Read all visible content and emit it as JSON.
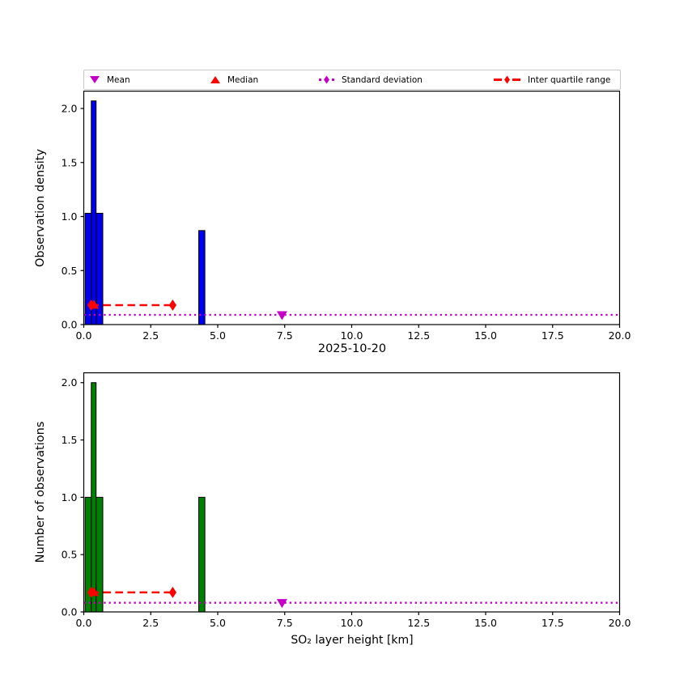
{
  "legend": {
    "items": [
      {
        "label": "Mean",
        "marker": "triangle-down",
        "color": "#c400c4"
      },
      {
        "label": "Median",
        "marker": "triangle-up",
        "color": "#ff0000"
      },
      {
        "label": "Standard deviation",
        "marker": "thin-diamond-dotted-line",
        "color": "#c400c4"
      },
      {
        "label": "Inter quartile range",
        "marker": "thin-diamond-dashed-line",
        "color": "#ff0000"
      }
    ]
  },
  "chart_data": [
    {
      "type": "bar",
      "title": "2025-10-20",
      "ylabel": "Observation density",
      "xlim": [
        0,
        20
      ],
      "ylim": [
        0,
        2.165
      ],
      "xticks": [
        0.0,
        2.5,
        5.0,
        7.5,
        10.0,
        12.5,
        15.0,
        17.5,
        20.0
      ],
      "yticks": [
        0.0,
        0.5,
        1.0,
        1.5,
        2.0
      ],
      "grid": false,
      "bar_color": "#0000ee",
      "bar_edge": "#000000",
      "bars": [
        {
          "x0": 0.05,
          "x1": 0.28,
          "height": 1.03
        },
        {
          "x0": 0.28,
          "x1": 0.46,
          "height": 2.07
        },
        {
          "x0": 0.46,
          "x1": 0.71,
          "height": 1.03
        },
        {
          "x0": 4.29,
          "x1": 4.52,
          "height": 0.87
        }
      ],
      "stats": {
        "mean": {
          "x": 7.4,
          "y": 0.09
        },
        "median": {
          "x": 0.38,
          "y": 0.18
        },
        "std_line": {
          "x0": 0.0,
          "x1": 20.0,
          "y": 0.09
        },
        "iqr": {
          "x0": 0.27,
          "x1": 3.32,
          "y": 0.18
        }
      },
      "colors": {
        "mean": "#c400c4",
        "median": "#ff0000",
        "std": "#c400c4",
        "iqr": "#ff0000"
      }
    },
    {
      "type": "bar",
      "xlabel": "SO₂ layer height [km]",
      "ylabel": "Number of observations",
      "xlim": [
        0,
        20
      ],
      "ylim": [
        0,
        2.09
      ],
      "xticks": [
        0.0,
        2.5,
        5.0,
        7.5,
        10.0,
        12.5,
        15.0,
        17.5,
        20.0
      ],
      "yticks": [
        0.0,
        0.5,
        1.0,
        1.5,
        2.0
      ],
      "grid": false,
      "bar_color": "#008000",
      "bar_edge": "#000000",
      "bars": [
        {
          "x0": 0.05,
          "x1": 0.28,
          "height": 1.0
        },
        {
          "x0": 0.28,
          "x1": 0.46,
          "height": 2.0
        },
        {
          "x0": 0.46,
          "x1": 0.71,
          "height": 1.0
        },
        {
          "x0": 4.29,
          "x1": 4.52,
          "height": 1.0
        }
      ],
      "stats": {
        "mean": {
          "x": 7.4,
          "y": 0.08
        },
        "median": {
          "x": 0.38,
          "y": 0.17
        },
        "std_line": {
          "x0": 0.0,
          "x1": 20.0,
          "y": 0.08
        },
        "iqr": {
          "x0": 0.27,
          "x1": 3.32,
          "y": 0.17
        }
      },
      "colors": {
        "mean": "#c400c4",
        "median": "#ff0000",
        "std": "#c400c4",
        "iqr": "#ff0000"
      }
    }
  ]
}
